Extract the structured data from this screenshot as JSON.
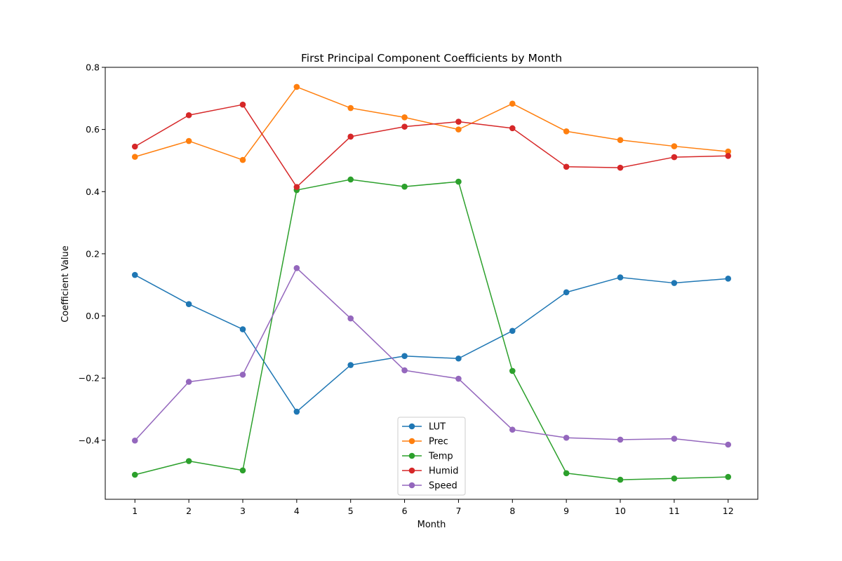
{
  "chart_data": {
    "type": "line",
    "title": "First Principal Component Coefficients by Month",
    "xlabel": "Month",
    "ylabel": "Coefficient Value",
    "x": [
      1,
      2,
      3,
      4,
      5,
      6,
      7,
      8,
      9,
      10,
      11,
      12
    ],
    "xticks": [
      "1",
      "2",
      "3",
      "4",
      "5",
      "6",
      "7",
      "8",
      "9",
      "10",
      "11",
      "12"
    ],
    "xlim": [
      0.45,
      12.55
    ],
    "ylim": [
      -0.59,
      0.8
    ],
    "yticks": [
      -0.4,
      -0.2,
      0.0,
      0.2,
      0.4,
      0.6,
      0.8
    ],
    "ytick_labels": [
      "−0.4",
      "−0.2",
      "0.0",
      "0.2",
      "0.4",
      "0.6",
      "0.8"
    ],
    "grid": false,
    "legend_position": "bottom-center",
    "series": [
      {
        "name": "LUT",
        "color": "#1f77b4",
        "values": [
          0.132,
          0.038,
          -0.043,
          -0.308,
          -0.158,
          -0.129,
          -0.137,
          -0.048,
          0.076,
          0.124,
          0.106,
          0.12
        ]
      },
      {
        "name": "Prec",
        "color": "#ff7f0e",
        "values": [
          0.512,
          0.563,
          0.502,
          0.737,
          0.669,
          0.639,
          0.6,
          0.683,
          0.594,
          0.566,
          0.546,
          0.529
        ]
      },
      {
        "name": "Temp",
        "color": "#2ca02c",
        "values": [
          -0.511,
          -0.467,
          -0.497,
          0.405,
          0.439,
          0.416,
          0.432,
          -0.177,
          -0.506,
          -0.527,
          -0.523,
          -0.518
        ]
      },
      {
        "name": "Humid",
        "color": "#d62728",
        "values": [
          0.545,
          0.646,
          0.68,
          0.415,
          0.577,
          0.609,
          0.625,
          0.604,
          0.48,
          0.477,
          0.511,
          0.515
        ]
      },
      {
        "name": "Speed",
        "color": "#9467bd",
        "values": [
          -0.401,
          -0.212,
          -0.189,
          0.154,
          -0.008,
          -0.175,
          -0.202,
          -0.366,
          -0.392,
          -0.398,
          -0.395,
          -0.414
        ]
      }
    ]
  }
}
